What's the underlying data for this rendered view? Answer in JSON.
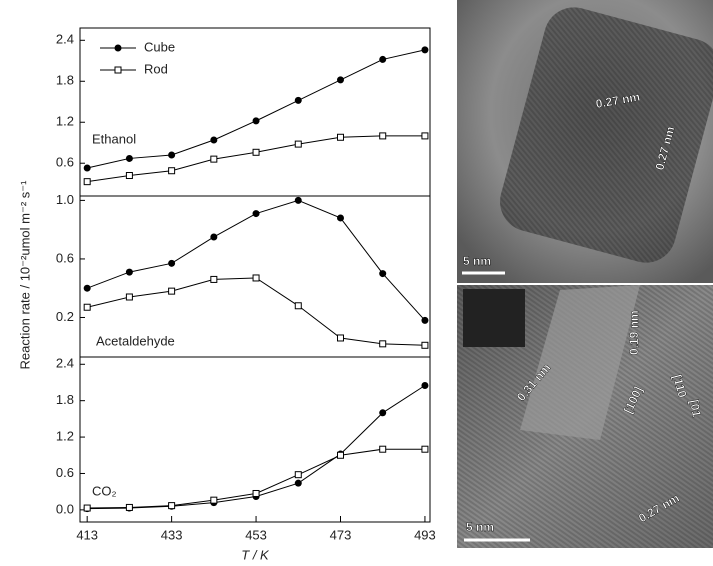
{
  "chart_data": {
    "type": "line",
    "x": [
      413,
      423,
      433,
      443,
      453,
      463,
      473,
      483,
      493
    ],
    "xlim": [
      411.3,
      494.2
    ],
    "xticks": [
      413,
      433,
      453,
      473,
      493
    ],
    "xlabel": "T / K",
    "ylabel": "Reaction rate / 10⁻²umol m⁻² s⁻¹",
    "series": [
      {
        "name": "Cube",
        "color": "#000000",
        "marker": "filled-circle"
      },
      {
        "name": "Rod",
        "color": "#000000",
        "marker": "open-square"
      }
    ],
    "panels": [
      {
        "label": "Ethanol",
        "ylim": [
          0.12,
          2.58
        ],
        "yticks": [
          0.6,
          1.2,
          1.8,
          2.4
        ],
        "values": [
          [
            0.53,
            0.67,
            0.72,
            0.94,
            1.22,
            1.52,
            1.82,
            2.12,
            2.26
          ],
          [
            0.33,
            0.42,
            0.49,
            0.66,
            0.76,
            0.88,
            0.98,
            1.0,
            1.0
          ]
        ]
      },
      {
        "label": "Acetaldehyde",
        "ylim": [
          -0.07,
          1.03
        ],
        "yticks": [
          0.2,
          0.6,
          {
            "value": 1,
            "label": "1.0"
          }
        ],
        "values": [
          [
            0.4,
            0.51,
            0.57,
            0.75,
            0.91,
            1.0,
            0.88,
            0.5,
            0.18
          ],
          [
            0.27,
            0.34,
            0.38,
            0.46,
            0.47,
            0.28,
            0.06,
            0.02,
            0.01
          ]
        ]
      },
      {
        "label": "CO₂",
        "ylim": [
          -0.2,
          2.52
        ],
        "yticks": [
          {
            "value": 0,
            "label": "0.0"
          },
          0.6,
          1.2,
          1.8,
          2.4
        ],
        "values": [
          [
            0.02,
            0.03,
            0.06,
            0.12,
            0.22,
            0.44,
            0.92,
            1.6,
            2.05
          ],
          [
            0.03,
            0.04,
            0.07,
            0.16,
            0.27,
            0.58,
            0.9,
            1.0,
            1.0
          ]
        ]
      }
    ]
  },
  "images": [
    {
      "labels": [
        "0.27 nm",
        "0.27 nm",
        "5 nm"
      ]
    },
    {
      "labels": [
        "0.19 nm",
        "0.31 nm",
        "[110",
        "[100]",
        "[01",
        "0.27 nm",
        "5 nm"
      ]
    }
  ]
}
